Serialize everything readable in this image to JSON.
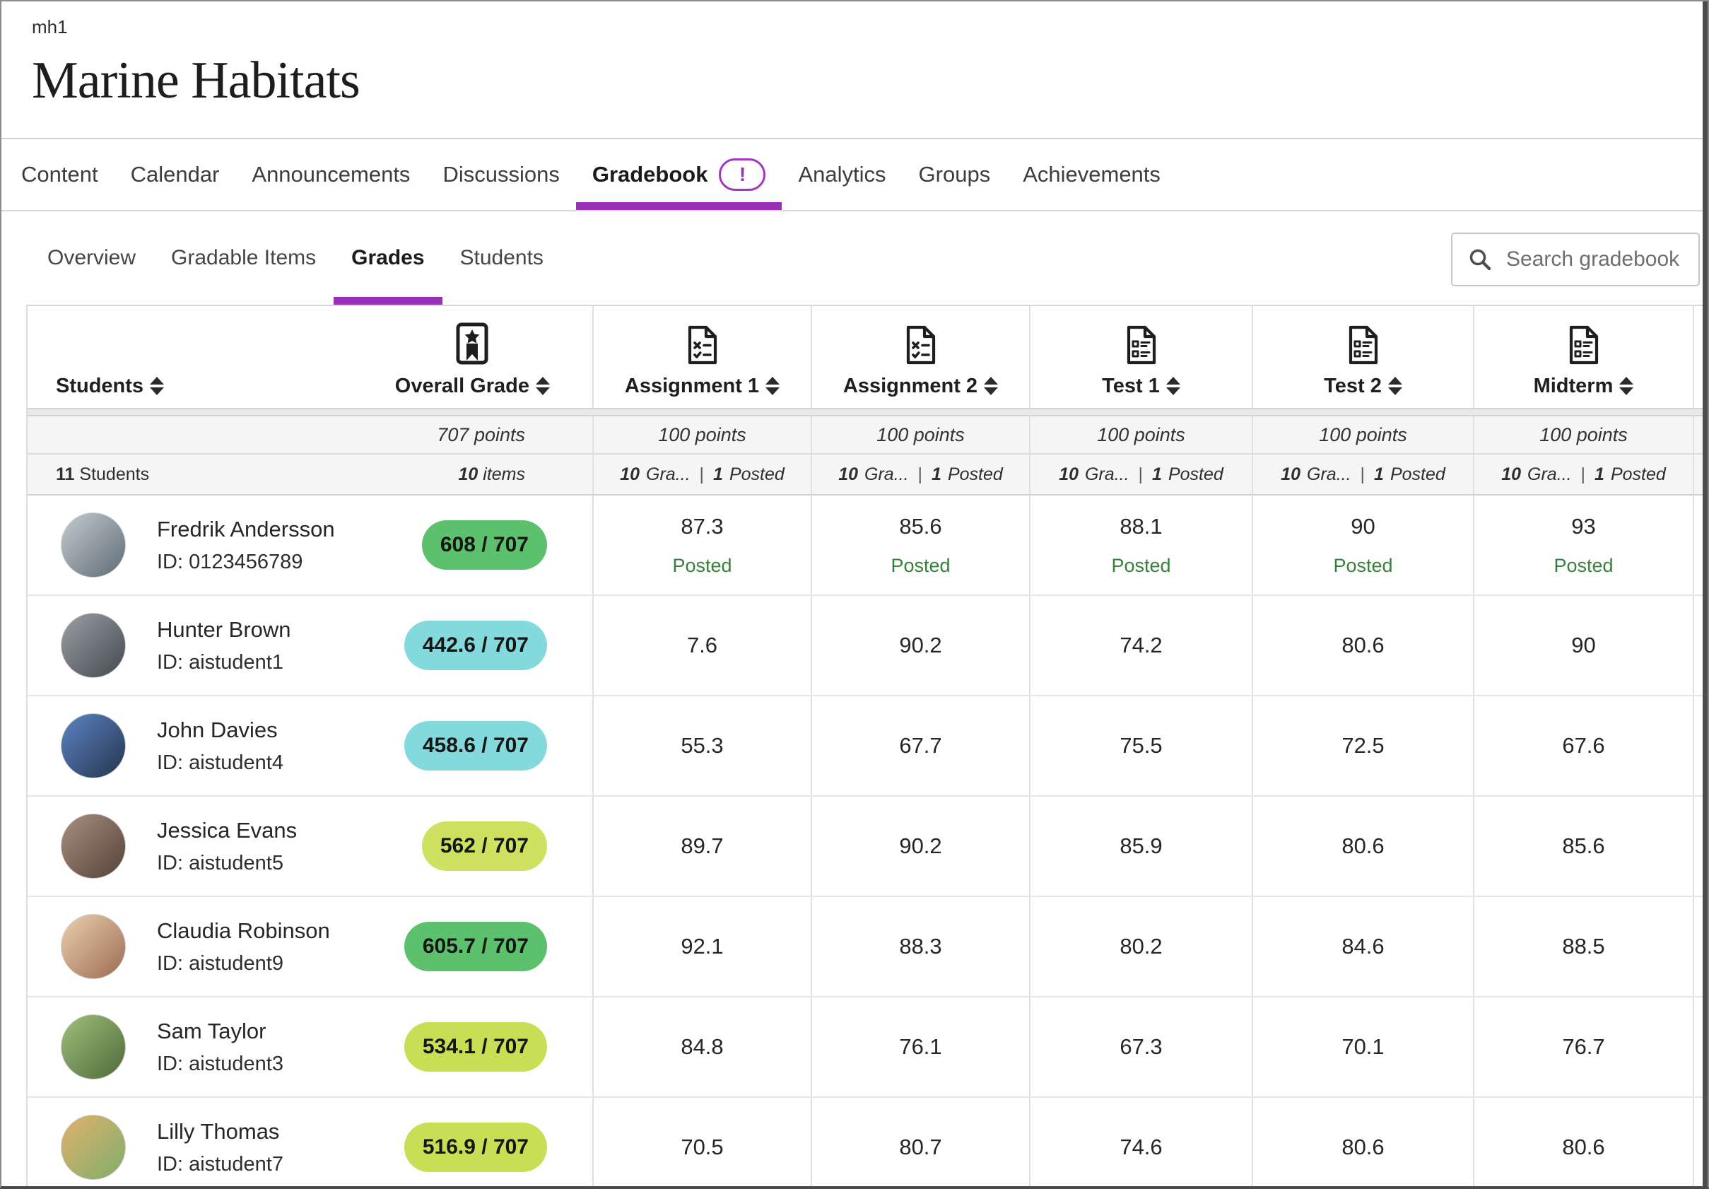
{
  "page": {
    "course_id": "mh1",
    "course_title": "Marine Habitats"
  },
  "colors": {
    "accent_purple": "#9a2eb8",
    "posted_green": "#35813b"
  },
  "nav": {
    "items": [
      {
        "label": "Content"
      },
      {
        "label": "Calendar"
      },
      {
        "label": "Announcements"
      },
      {
        "label": "Discussions"
      },
      {
        "label": "Gradebook",
        "badge": "!",
        "active": true
      },
      {
        "label": "Analytics"
      },
      {
        "label": "Groups"
      },
      {
        "label": "Achievements"
      }
    ]
  },
  "subnav": {
    "items": [
      {
        "label": "Overview"
      },
      {
        "label": "Gradable Items"
      },
      {
        "label": "Grades",
        "active": true
      },
      {
        "label": "Students"
      }
    ],
    "search_placeholder": "Search gradebook"
  },
  "gradebook": {
    "sep": "|",
    "students_header": "Students",
    "overall_header": "Overall Grade",
    "overall_points": "707 points",
    "overall_items_count": "10",
    "overall_items_label": "items",
    "students_count": "11",
    "students_count_label": "Students",
    "columns": [
      {
        "label": "Assignment 1",
        "points": "100 points",
        "graded_count": "10",
        "graded_label": "Gra...",
        "posted_count": "1",
        "posted_label": "Posted"
      },
      {
        "label": "Assignment 2",
        "points": "100 points",
        "graded_count": "10",
        "graded_label": "Gra...",
        "posted_count": "1",
        "posted_label": "Posted"
      },
      {
        "label": "Test 1",
        "points": "100 points",
        "graded_count": "10",
        "graded_label": "Gra...",
        "posted_count": "1",
        "posted_label": "Posted"
      },
      {
        "label": "Test 2",
        "points": "100 points",
        "graded_count": "10",
        "graded_label": "Gra...",
        "posted_count": "1",
        "posted_label": "Posted"
      },
      {
        "label": "Midterm",
        "points": "100 points",
        "graded_count": "10",
        "graded_label": "Gra...",
        "posted_count": "1",
        "posted_label": "Posted"
      }
    ],
    "students": [
      {
        "name": "Fredrik Andersson",
        "id": "ID: 0123456789",
        "overall": "608 / 707",
        "overall_color": "#5cc06c",
        "avatar_bg": "linear-gradient(135deg,#c3ccd2,#5f6b75)",
        "grades": [
          {
            "value": "87.3",
            "status": "Posted"
          },
          {
            "value": "85.6",
            "status": "Posted"
          },
          {
            "value": "88.1",
            "status": "Posted"
          },
          {
            "value": "90",
            "status": "Posted"
          },
          {
            "value": "93",
            "status": "Posted"
          }
        ]
      },
      {
        "name": "Hunter Brown",
        "id": "ID: aistudent1",
        "overall": "442.6 / 707",
        "overall_color": "#84d9dc",
        "avatar_bg": "linear-gradient(135deg,#9aa0a6,#44494f)",
        "grades": [
          {
            "value": "7.6"
          },
          {
            "value": "90.2"
          },
          {
            "value": "74.2"
          },
          {
            "value": "80.6"
          },
          {
            "value": "90"
          }
        ]
      },
      {
        "name": "John Davies",
        "id": "ID: aistudent4",
        "overall": "458.6 / 707",
        "overall_color": "#84d9dc",
        "avatar_bg": "linear-gradient(135deg,#5b84c4,#26354d)",
        "grades": [
          {
            "value": "55.3"
          },
          {
            "value": "67.7"
          },
          {
            "value": "75.5"
          },
          {
            "value": "72.5"
          },
          {
            "value": "67.6"
          }
        ]
      },
      {
        "name": "Jessica Evans",
        "id": "ID: aistudent5",
        "overall": "562 / 707",
        "overall_color": "#cfe160",
        "avatar_bg": "linear-gradient(135deg,#a98f7e,#55423a)",
        "grades": [
          {
            "value": "89.7"
          },
          {
            "value": "90.2"
          },
          {
            "value": "85.9"
          },
          {
            "value": "80.6"
          },
          {
            "value": "85.6"
          }
        ]
      },
      {
        "name": "Claudia Robinson",
        "id": "ID: aistudent9",
        "overall": "605.7 / 707",
        "overall_color": "#5cc06c",
        "avatar_bg": "linear-gradient(135deg,#ecd0b0,#9c6b52)",
        "grades": [
          {
            "value": "92.1"
          },
          {
            "value": "88.3"
          },
          {
            "value": "80.2"
          },
          {
            "value": "84.6"
          },
          {
            "value": "88.5"
          }
        ]
      },
      {
        "name": "Sam Taylor",
        "id": "ID: aistudent3",
        "overall": "534.1 / 707",
        "overall_color": "#c7de55",
        "avatar_bg": "linear-gradient(135deg,#9ec07a,#4f6a3a)",
        "grades": [
          {
            "value": "84.8"
          },
          {
            "value": "76.1"
          },
          {
            "value": "67.3"
          },
          {
            "value": "70.1"
          },
          {
            "value": "76.7"
          }
        ]
      },
      {
        "name": "Lilly Thomas",
        "id": "ID: aistudent7",
        "overall": "516.9 / 707",
        "overall_color": "#c7de55",
        "avatar_bg": "linear-gradient(135deg,#e0b26c,#7fae6b)",
        "grades": [
          {
            "value": "70.5"
          },
          {
            "value": "80.7"
          },
          {
            "value": "74.6"
          },
          {
            "value": "80.6"
          },
          {
            "value": "80.6"
          }
        ]
      }
    ]
  }
}
